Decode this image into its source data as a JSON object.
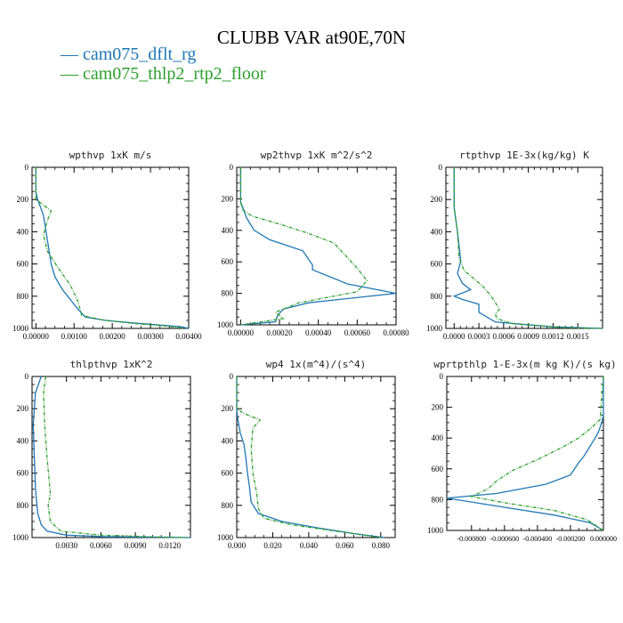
{
  "title": "CLUBB VAR at90E,70N",
  "legend": [
    {
      "label": "cam075_dflt_rg",
      "color": "#1f77b4"
    },
    {
      "label": "cam075_thlp2_rtp2_floor",
      "color": "#2ca02c"
    }
  ],
  "chart_data": [
    {
      "type": "line",
      "title": "wpthvp  1xK m/s",
      "xlim": [
        -0.0001,
        0.004
      ],
      "ylim": [
        1000,
        0
      ],
      "xticks": [
        0,
        0.001,
        0.002,
        0.003,
        0.004
      ],
      "xticklabels": [
        "0.00000",
        "0.00100",
        "0.00200",
        "0.00300",
        "0.00400"
      ],
      "yticks": [
        0,
        200,
        400,
        600,
        800,
        1000
      ],
      "yticklabels": [
        "0",
        "200",
        "400",
        "600",
        "800",
        "1000"
      ],
      "series": [
        {
          "color": "#1f77b4",
          "dash": "solid",
          "x": [
            0,
            0,
            5e-05,
            0.0002,
            0.0003,
            0.0004,
            0.0005,
            0.0007,
            0.0009,
            0.0011,
            0.0013,
            0.0018,
            0.0025,
            0.0033,
            0.0038,
            0.004
          ],
          "y": [
            0,
            150,
            200,
            300,
            450,
            600,
            680,
            760,
            820,
            880,
            930,
            950,
            965,
            980,
            990,
            1000
          ]
        },
        {
          "color": "#2ca02c",
          "dash": "dashed",
          "x": [
            0,
            0,
            0.0004,
            0.0003,
            0.0002,
            0.0003,
            0.0006,
            0.0009,
            0.0011,
            0.0012,
            0.0018,
            0.0026,
            0.0034,
            0.0039
          ],
          "y": [
            0,
            200,
            270,
            330,
            420,
            520,
            630,
            730,
            830,
            920,
            950,
            970,
            985,
            1000
          ]
        }
      ]
    },
    {
      "type": "line",
      "title": "wp2thvp  1xK m^2/s^2",
      "xlim": [
        -2e-05,
        0.0008
      ],
      "ylim": [
        1000,
        0
      ],
      "xticks": [
        0,
        0.0002,
        0.0004,
        0.0006,
        0.0008
      ],
      "xticklabels": [
        "0.00000",
        "0.00020",
        "0.00040",
        "0.00060",
        "0.00080"
      ],
      "yticks": [
        0,
        200,
        400,
        600,
        800,
        1000
      ],
      "yticklabels": [
        "0",
        "200",
        "400",
        "600",
        "800",
        "1000"
      ],
      "series": [
        {
          "color": "#1f77b4",
          "dash": "solid",
          "x": [
            0,
            0,
            1e-05,
            3e-05,
            7e-05,
            0.00015,
            0.00032,
            0.00037,
            0.00037,
            0.00055,
            0.0008,
            0.00035,
            0.00022,
            0.00019,
            0.00018,
            0
          ],
          "y": [
            0,
            220,
            250,
            320,
            400,
            460,
            530,
            620,
            650,
            740,
            800,
            860,
            900,
            940,
            980,
            1000
          ]
        },
        {
          "color": "#2ca02c",
          "dash": "dashed",
          "x": [
            0,
            0,
            1e-05,
            6e-05,
            0.0002,
            0.00035,
            0.00048,
            0.00054,
            0.0006,
            0.00065,
            0.0006,
            0.0003,
            0.00018,
            0.00022,
            0
          ],
          "y": [
            0,
            220,
            270,
            310,
            360,
            420,
            480,
            560,
            640,
            720,
            790,
            860,
            920,
            960,
            1000
          ]
        }
      ]
    },
    {
      "type": "line",
      "title": "rtpthvp  1E-3x(kg/kg) K",
      "xlim": [
        -0.0001,
        0.0018
      ],
      "ylim": [
        1000,
        0
      ],
      "xticks": [
        0,
        0.0003,
        0.0006,
        0.0009,
        0.0012,
        0.0015
      ],
      "xticklabels": [
        "0.0000",
        "0.0003",
        "0.0006",
        "0.0009",
        "0.0012",
        "0.0015"
      ],
      "yticks": [
        0,
        200,
        400,
        600,
        800,
        1000
      ],
      "yticklabels": [
        "0",
        "200",
        "400",
        "600",
        "800",
        "1000"
      ],
      "series": [
        {
          "color": "#1f77b4",
          "dash": "solid",
          "x": [
            0,
            0,
            4e-05,
            8e-05,
            4e-05,
            0.0001,
            0.0002,
            0.0,
            0.0001,
            0.0003,
            0.0003,
            0.0005,
            0.0012,
            0.0018
          ],
          "y": [
            0,
            250,
            400,
            580,
            660,
            720,
            760,
            800,
            820,
            850,
            900,
            960,
            990,
            1000
          ]
        },
        {
          "color": "#2ca02c",
          "dash": "dashed",
          "x": [
            0,
            0,
            4e-05,
            6e-05,
            0.00012,
            0.00035,
            0.00045,
            0.00055,
            0.0005,
            0.00052,
            0.0007,
            0.0013,
            0.0018
          ],
          "y": [
            0,
            250,
            400,
            560,
            640,
            740,
            800,
            880,
            910,
            940,
            970,
            995,
            1000
          ]
        }
      ]
    },
    {
      "type": "line",
      "title": "thlpthvp  1xK^2",
      "xlim": [
        0,
        0.0138
      ],
      "ylim": [
        1000,
        0
      ],
      "xticks": [
        0.003,
        0.006,
        0.009,
        0.012
      ],
      "xticklabels": [
        "0.0030",
        "0.0060",
        "0.0090",
        "0.0120"
      ],
      "yticks": [
        0,
        200,
        400,
        600,
        800,
        1000
      ],
      "yticklabels": [
        "0",
        "200",
        "400",
        "600",
        "800",
        "1000"
      ],
      "series": [
        {
          "color": "#1f77b4",
          "dash": "solid",
          "x": [
            0.0008,
            0.0003,
            0.0001,
            0.0002,
            0.0003,
            0.0005,
            0.0008,
            0.0013,
            0.003,
            0.0065,
            0.011,
            0.0138
          ],
          "y": [
            0,
            100,
            300,
            500,
            700,
            850,
            920,
            960,
            985,
            995,
            998,
            1000
          ]
        },
        {
          "color": "#2ca02c",
          "dash": "dashed",
          "x": [
            0.0012,
            0.001,
            0.0011,
            0.0013,
            0.0015,
            0.0016,
            0.0014,
            0.0016,
            0.0025,
            0.006,
            0.0105,
            0.0135
          ],
          "y": [
            0,
            100,
            300,
            500,
            650,
            730,
            800,
            900,
            960,
            985,
            995,
            1000
          ]
        }
      ]
    },
    {
      "type": "line",
      "title": "wp4  1x(m^4)/(s^4)",
      "xlim": [
        0,
        0.088
      ],
      "ylim": [
        1000,
        0
      ],
      "xticks": [
        0,
        0.02,
        0.04,
        0.06,
        0.08
      ],
      "xticklabels": [
        "0.000",
        "0.020",
        "0.040",
        "0.060",
        "0.080"
      ],
      "yticks": [
        0,
        200,
        400,
        600,
        800,
        1000
      ],
      "yticklabels": [
        "0",
        "200",
        "400",
        "600",
        "800",
        "1000"
      ],
      "series": [
        {
          "color": "#1f77b4",
          "dash": "solid",
          "x": [
            0.0,
            0.0,
            0.0005,
            0.002,
            0.004,
            0.005,
            0.006,
            0.007,
            0.008,
            0.012,
            0.025,
            0.045,
            0.065,
            0.082
          ],
          "y": [
            0,
            200,
            260,
            350,
            420,
            500,
            600,
            680,
            780,
            850,
            900,
            940,
            975,
            1000
          ]
        },
        {
          "color": "#2ca02c",
          "dash": "dashed",
          "x": [
            0.0,
            0.0,
            0.004,
            0.013,
            0.009,
            0.008,
            0.009,
            0.011,
            0.012,
            0.015,
            0.03,
            0.055,
            0.08
          ],
          "y": [
            0,
            200,
            230,
            270,
            320,
            450,
            600,
            720,
            820,
            880,
            920,
            960,
            1000
          ]
        }
      ]
    },
    {
      "type": "line",
      "title": "wprtpthlp  1-E-3x(m kg K)/(s kg)",
      "xlim": [
        -0.00095,
        0.0
      ],
      "ylim": [
        1000,
        0
      ],
      "xticks": [
        -0.0008,
        -0.0006,
        -0.0004,
        -0.0002,
        0.0
      ],
      "xticklabels": [
        "-0.000800",
        "-0.000600",
        "-0.000400",
        "-0.000200",
        "0.000000"
      ],
      "yticks": [
        0,
        200,
        400,
        600,
        800,
        1000
      ],
      "yticklabels": [
        "0",
        "200",
        "400",
        "600",
        "800",
        "1000"
      ],
      "series": [
        {
          "color": "#1f77b4",
          "dash": "solid",
          "x": [
            0.0,
            0.0,
            -1e-05,
            -3e-05,
            -5e-05,
            -0.00012,
            -0.00015,
            -0.0002,
            -0.00035,
            -0.00065,
            -0.00095,
            -0.0006,
            -0.0003,
            -8e-05,
            0.0
          ],
          "y": [
            0,
            250,
            300,
            360,
            400,
            520,
            560,
            640,
            700,
            760,
            790,
            850,
            900,
            950,
            1000
          ]
        },
        {
          "color": "#2ca02c",
          "dash": "dashed",
          "x": [
            0.0,
            -2e-05,
            -7e-05,
            -0.00015,
            -0.00025,
            -0.0004,
            -0.00055,
            -0.00065,
            -0.0007,
            -0.0008,
            -0.0006,
            -0.0003,
            -0.0001,
            0.0
          ],
          "y": [
            0,
            280,
            330,
            400,
            460,
            540,
            610,
            680,
            730,
            780,
            820,
            870,
            930,
            1000
          ]
        }
      ]
    }
  ]
}
